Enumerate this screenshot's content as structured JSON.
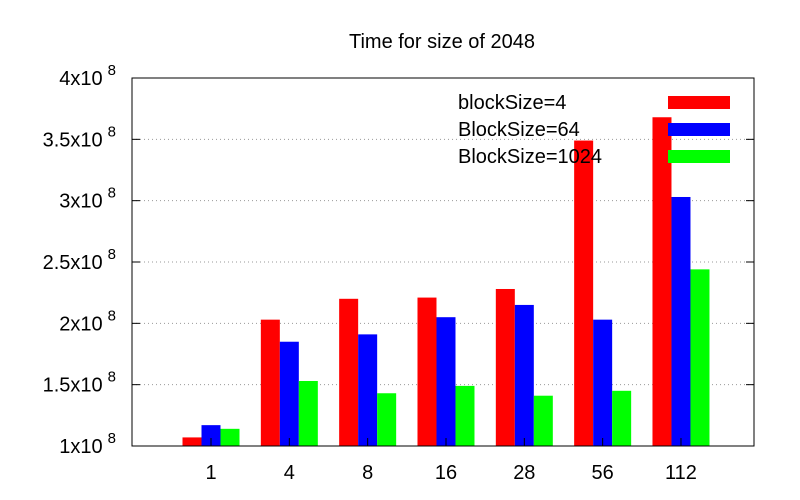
{
  "chart_data": {
    "type": "bar",
    "title": "Time for size of 2048",
    "xlabel": "",
    "ylabel": "",
    "categories": [
      "1",
      "4",
      "8",
      "16",
      "28",
      "56",
      "112"
    ],
    "series": [
      {
        "name": "blockSize=4",
        "color": "#ff0000",
        "values": [
          107000000,
          203000000,
          220000000,
          221000000,
          228000000,
          349000000,
          368000000
        ]
      },
      {
        "name": "BlockSize=64",
        "color": "#0000ff",
        "values": [
          117000000,
          185000000,
          191000000,
          205000000,
          215000000,
          203000000,
          303000000
        ]
      },
      {
        "name": "BlockSize=1024",
        "color": "#00ff00",
        "values": [
          114000000,
          153000000,
          143000000,
          149000000,
          141000000,
          145000000,
          244000000
        ]
      }
    ],
    "ylim": [
      100000000,
      400000000
    ],
    "yticks": [
      {
        "value": 100000000,
        "mantissa": "1x10",
        "exp": "8"
      },
      {
        "value": 150000000,
        "mantissa": "1.5x10",
        "exp": "8"
      },
      {
        "value": 200000000,
        "mantissa": "2x10",
        "exp": "8"
      },
      {
        "value": 250000000,
        "mantissa": "2.5x10",
        "exp": "8"
      },
      {
        "value": 300000000,
        "mantissa": "3x10",
        "exp": "8"
      },
      {
        "value": 350000000,
        "mantissa": "3.5x10",
        "exp": "8"
      },
      {
        "value": 400000000,
        "mantissa": "4x10",
        "exp": "8"
      }
    ],
    "grid": "horizontal-dotted",
    "legend_position": "top-right"
  }
}
